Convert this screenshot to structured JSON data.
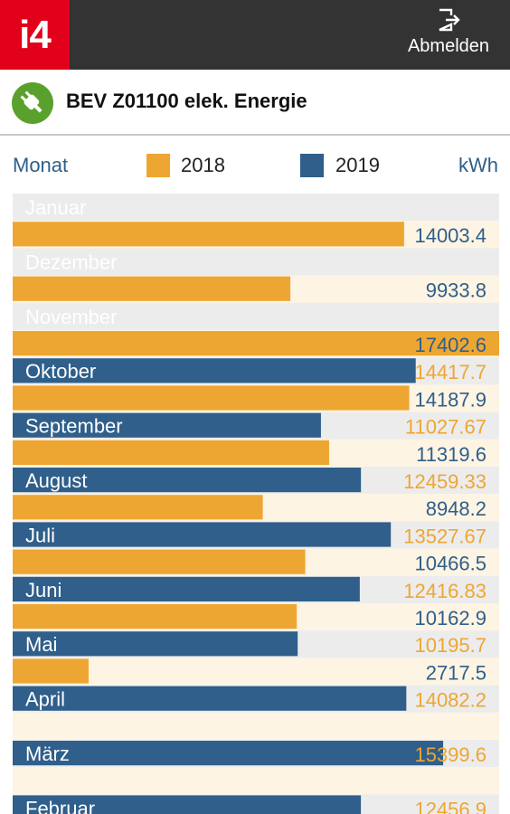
{
  "app": {
    "logo_text": "i4",
    "logout_label": "Abmelden",
    "title": "BEV Z01100 elek. Energie"
  },
  "legend": {
    "month_label": "Monat",
    "year_a": "2018",
    "year_b": "2019",
    "unit": "kWh"
  },
  "colors": {
    "year_2018": "#eea632",
    "year_2019": "#2f5f8a",
    "row_bg_even": "#ececec",
    "row_bg_odd": "#fdf4e3",
    "header": "#333333",
    "brand": "#e2001a"
  },
  "icons": [
    "logout-icon",
    "plug-icon"
  ],
  "chart_data": {
    "type": "bar",
    "orientation": "horizontal",
    "unit": "kWh",
    "categories": [
      "Januar",
      "Dezember",
      "November",
      "Oktober",
      "September",
      "August",
      "Juli",
      "Juni",
      "Mai",
      "April",
      "März",
      "Februar"
    ],
    "series": [
      {
        "name": "2018",
        "values": [
          14003.4,
          9933.8,
          17402.6,
          14187.9,
          11319.6,
          8948.2,
          10466.5,
          10162.9,
          2717.5,
          null,
          null,
          null
        ],
        "labels": [
          "14003.4",
          "9933.8",
          "17402.6",
          "14187.9",
          "11319.6",
          "8948.2",
          "10466.5",
          "10162.9",
          "2717.5",
          "",
          "",
          ""
        ]
      },
      {
        "name": "2019",
        "values": [
          null,
          null,
          null,
          14417.7,
          11027.67,
          12459.33,
          13527.67,
          12416.83,
          10195.7,
          14082.2,
          15399.6,
          12456.9
        ],
        "labels": [
          "",
          "",
          "",
          "14417.7",
          "11027.67",
          "12459.33",
          "13527.67",
          "12416.83",
          "10195.7",
          "14082.2",
          "15399.6",
          "12456.9"
        ]
      }
    ]
  }
}
